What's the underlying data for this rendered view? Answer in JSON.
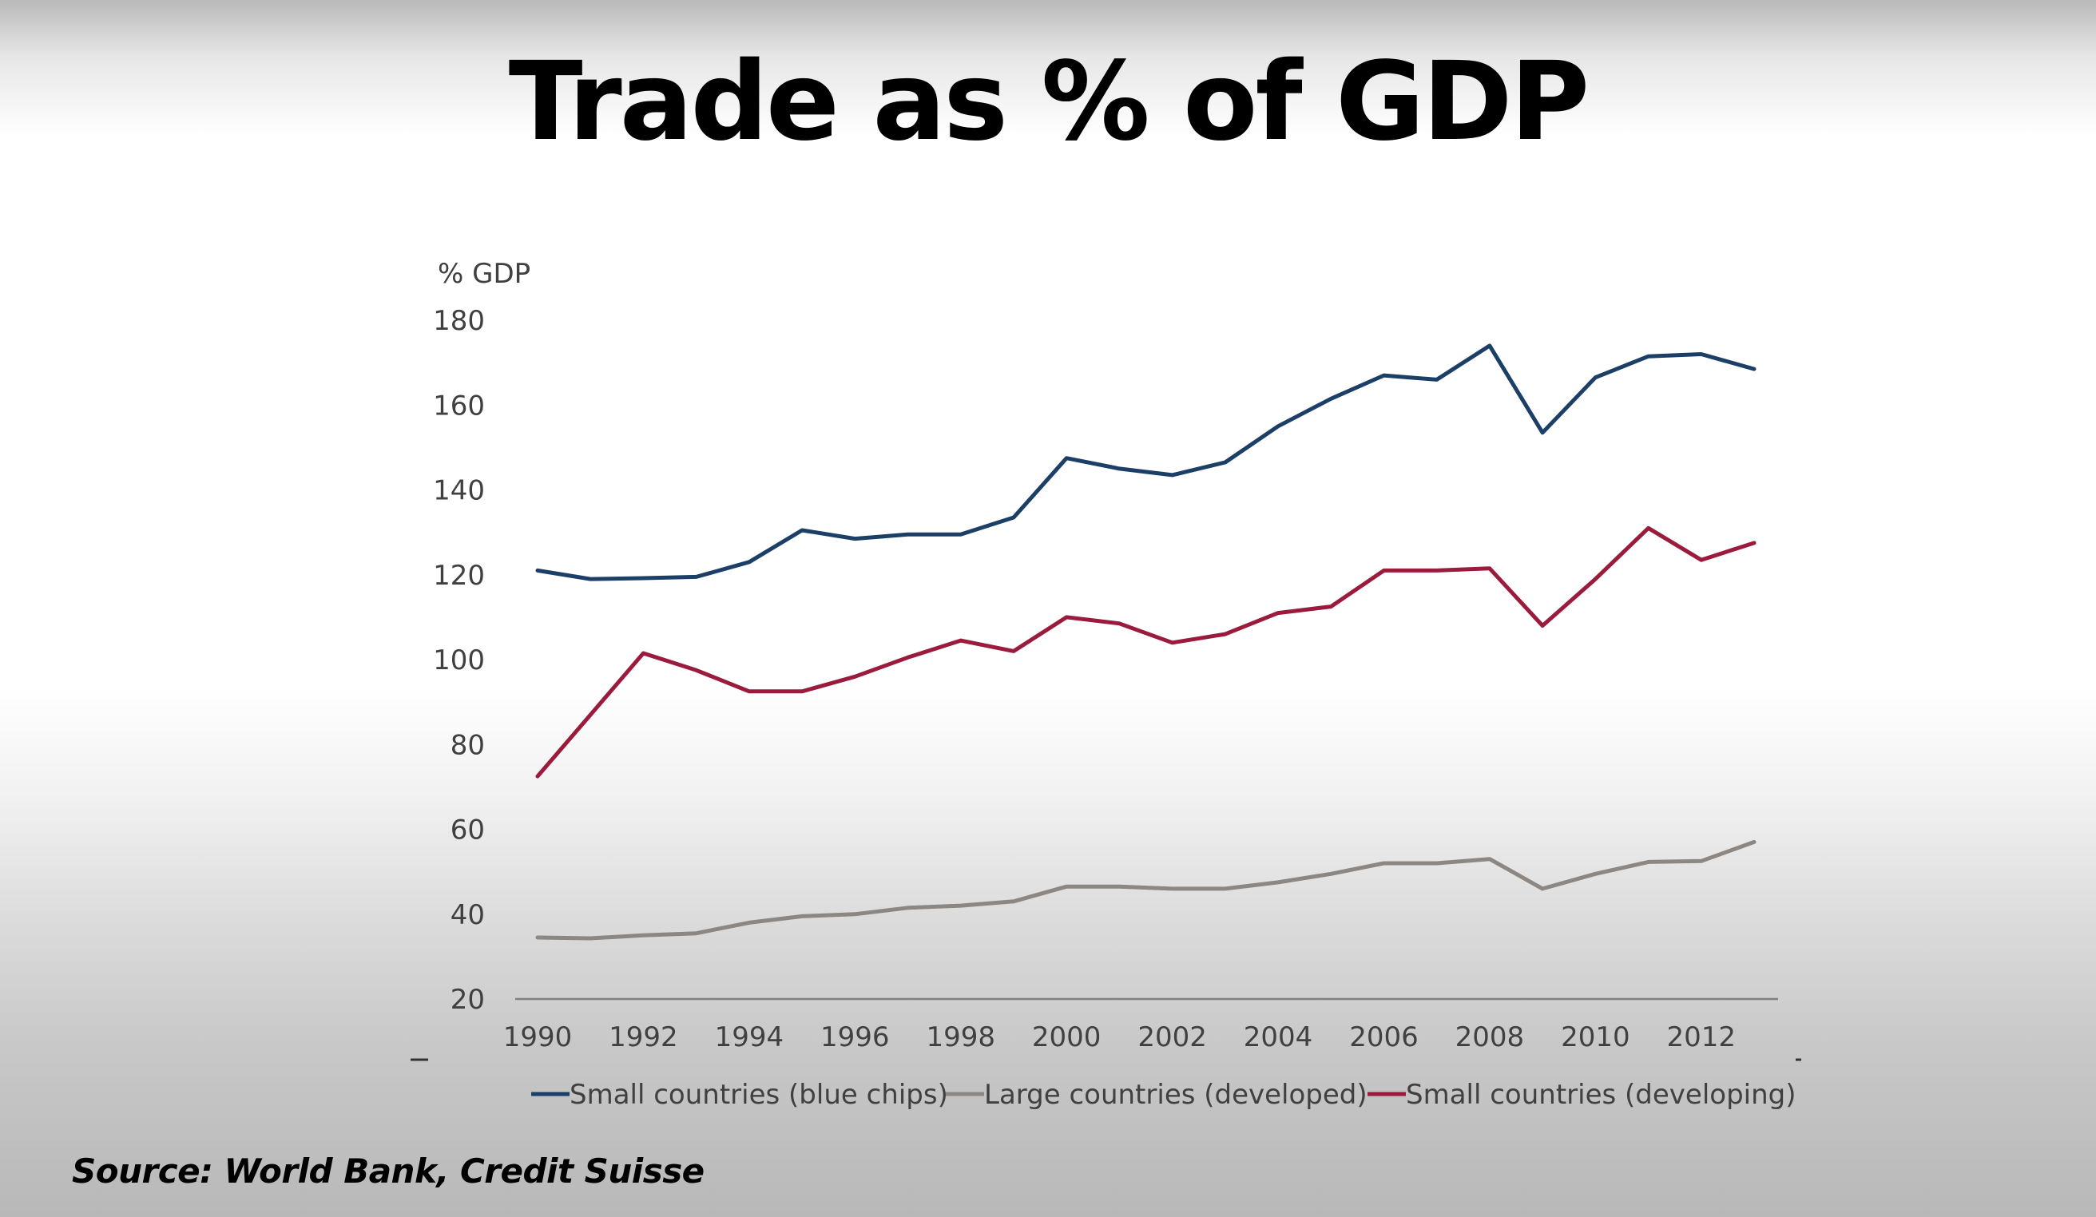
{
  "header": {
    "title": "Trade as % of GDP"
  },
  "footer": {
    "source": "Source: World Bank, Credit Suisse"
  },
  "chart_data": {
    "type": "line",
    "title": "Trade as % of GDP",
    "ylabel": "% GDP",
    "xlabel": "",
    "ylim": [
      20,
      180
    ],
    "xlim": [
      1990,
      2013
    ],
    "yticks": [
      20,
      40,
      60,
      80,
      100,
      120,
      140,
      160,
      180
    ],
    "xticks": [
      1990,
      1992,
      1994,
      1996,
      1998,
      2000,
      2002,
      2004,
      2006,
      2008,
      2010,
      2012
    ],
    "grid": false,
    "legend_position": "bottom",
    "x": [
      1990,
      1991,
      1992,
      1993,
      1994,
      1995,
      1996,
      1997,
      1998,
      1999,
      2000,
      2001,
      2002,
      2003,
      2004,
      2005,
      2006,
      2007,
      2008,
      2009,
      2010,
      2011,
      2012,
      2013
    ],
    "series": [
      {
        "name": "Small countries (blue chips)",
        "color": "#1b3f66",
        "values": [
          121,
          119,
          119.2,
          119.5,
          123,
          130.5,
          128.5,
          129.5,
          129.5,
          133.5,
          147.5,
          145,
          143.5,
          146.5,
          155,
          161.5,
          167,
          166,
          174,
          153.5,
          166.5,
          171.5,
          172,
          168.5
        ]
      },
      {
        "name": "Large countries (developed)",
        "color": "#8c8782",
        "values": [
          34.5,
          34.3,
          35,
          35.5,
          38,
          39.5,
          40,
          41.5,
          42,
          43,
          46.5,
          46.5,
          46,
          46,
          47.5,
          49.5,
          52,
          52,
          53,
          46,
          49.5,
          52.3,
          52.5,
          57
        ]
      },
      {
        "name": "Small countries (developing)",
        "color": "#9b1b3d",
        "values": [
          72.5,
          87,
          101.5,
          97.5,
          92.5,
          92.5,
          96,
          100.5,
          104.5,
          102,
          110,
          108.5,
          104,
          106,
          111,
          112.5,
          121,
          121,
          121.5,
          108,
          119,
          131,
          123.5,
          127.5
        ]
      }
    ]
  }
}
